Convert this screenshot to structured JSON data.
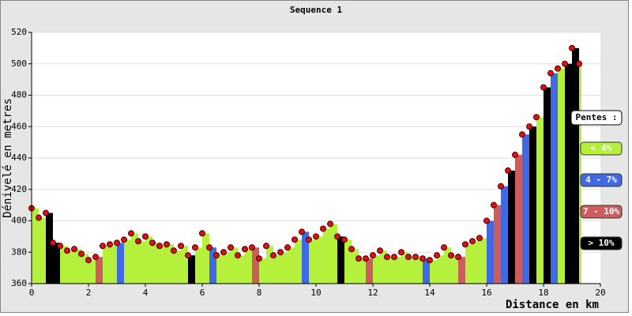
{
  "chart_data": {
    "type": "profile",
    "title": "Sequence 1",
    "y_label": "Dénivelé en metres",
    "x_label": "Distance en km",
    "x": [
      0,
      0.25,
      0.5,
      0.75,
      1,
      1.25,
      1.5,
      1.75,
      2,
      2.25,
      2.5,
      2.75,
      3,
      3.25,
      3.5,
      3.75,
      4,
      4.25,
      4.5,
      4.75,
      5,
      5.25,
      5.5,
      5.75,
      6,
      6.25,
      6.5,
      6.75,
      7,
      7.25,
      7.5,
      7.75,
      8,
      8.25,
      8.5,
      8.75,
      9,
      9.25,
      9.5,
      9.75,
      10,
      10.25,
      10.5,
      10.75,
      11,
      11.25,
      11.5,
      11.75,
      12,
      12.25,
      12.5,
      12.75,
      13,
      13.25,
      13.5,
      13.75,
      14,
      14.25,
      14.5,
      14.75,
      15,
      15.25,
      15.5,
      15.75,
      16,
      16.25,
      16.5,
      16.75,
      17,
      17.25,
      17.5,
      17.75,
      18,
      18.25,
      18.5,
      18.75,
      19,
      19.25
    ],
    "values": [
      408,
      402,
      405,
      386,
      384,
      381,
      382,
      379,
      375,
      377,
      384,
      385,
      386,
      388,
      392,
      387,
      390,
      386,
      384,
      385,
      381,
      384,
      378,
      383,
      392,
      383,
      378,
      380,
      383,
      378,
      382,
      383,
      376,
      384,
      378,
      380,
      383,
      388,
      393,
      388,
      390,
      395,
      398,
      390,
      388,
      382,
      376,
      376,
      378,
      381,
      377,
      377,
      380,
      377,
      377,
      376,
      375,
      378,
      383,
      378,
      377,
      385,
      387,
      389,
      400,
      410,
      422,
      432,
      442,
      455,
      460,
      466,
      485,
      494,
      497,
      500,
      510,
      500
    ],
    "colors": [
      "#b4f03c",
      "#b4f03c",
      "#000000",
      "#000000",
      "#b4f03c",
      "#b4f03c",
      "#b4f03c",
      "#b4f03c",
      "#b4f03c",
      "#cd5c5c",
      "#b4f03c",
      "#b4f03c",
      "#4169e1",
      "#b4f03c",
      "#b4f03c",
      "#b4f03c",
      "#b4f03c",
      "#b4f03c",
      "#b4f03c",
      "#b4f03c",
      "#b4f03c",
      "#b4f03c",
      "#000000",
      "#b4f03c",
      "#b4f03c",
      "#4169e1",
      "#b4f03c",
      "#b4f03c",
      "#b4f03c",
      "#b4f03c",
      "#b4f03c",
      "#cd5c5c",
      "#b4f03c",
      "#b4f03c",
      "#b4f03c",
      "#b4f03c",
      "#b4f03c",
      "#b4f03c",
      "#4169e1",
      "#b4f03c",
      "#b4f03c",
      "#b4f03c",
      "#b4f03c",
      "#000000",
      "#b4f03c",
      "#b4f03c",
      "#b4f03c",
      "#cd5c5c",
      "#b4f03c",
      "#b4f03c",
      "#b4f03c",
      "#b4f03c",
      "#b4f03c",
      "#b4f03c",
      "#b4f03c",
      "#4169e1",
      "#b4f03c",
      "#b4f03c",
      "#b4f03c",
      "#b4f03c",
      "#cd5c5c",
      "#b4f03c",
      "#b4f03c",
      "#b4f03c",
      "#4169e1",
      "#cd5c5c",
      "#4169e1",
      "#000000",
      "#cd5c5c",
      "#4169e1",
      "#000000",
      "#b4f03c",
      "#000000",
      "#4169e1",
      "#b4f03c",
      "#000000",
      "#000000",
      "#b4f03c"
    ],
    "marker_color": "#e01010",
    "xlim": [
      0,
      20
    ],
    "xticks": [
      0,
      2,
      4,
      6,
      8,
      10,
      12,
      14,
      16,
      18,
      20
    ],
    "ylim": [
      360,
      520
    ],
    "yticks": [
      360,
      380,
      400,
      420,
      440,
      460,
      480,
      500,
      520
    ],
    "grid": true,
    "legend": {
      "title": "Pentes :",
      "items": [
        {
          "label": "< 4%",
          "color": "#b4f03c"
        },
        {
          "label": "4 - 7%",
          "color": "#4169e1"
        },
        {
          "label": "7 - 10%",
          "color": "#cd5c5c"
        },
        {
          "label": "> 10%",
          "color": "#000000"
        }
      ]
    }
  }
}
